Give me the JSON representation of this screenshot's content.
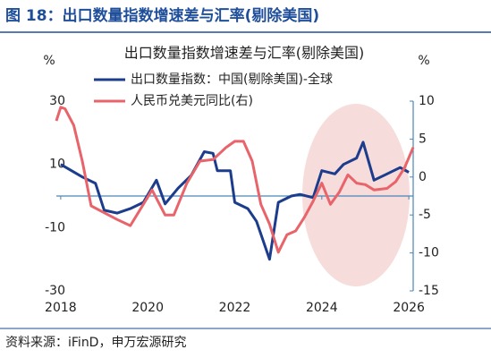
{
  "header": "图 18：出口数量指数增速差与汇率(剔除美国)",
  "source": "资料来源：iFinD，申万宏源研究",
  "chart_data": {
    "type": "line",
    "title": "出口数量指数增速差与汇率(剔除美国)",
    "y_label": "%",
    "y2_label": "%",
    "xlim": [
      2017.9,
      2026.1
    ],
    "xticks": [
      2018,
      2020,
      2022,
      2024,
      2026
    ],
    "ylim": [
      -30,
      30
    ],
    "yticks": [
      -30,
      -10,
      10,
      30
    ],
    "y2lim": [
      -15,
      10
    ],
    "y2ticks": [
      -15,
      -10,
      -5,
      0,
      5,
      10
    ],
    "series": [
      {
        "name": "出口数量指数：中国(剔除美国)-全球",
        "color": "#1c3c8c",
        "x": [
          2018.0,
          2018.5,
          2018.8,
          2019.0,
          2019.3,
          2019.6,
          2019.9,
          2020.2,
          2020.4,
          2020.7,
          2021.0,
          2021.3,
          2021.5,
          2021.6,
          2021.9,
          2022.0,
          2022.3,
          2022.5,
          2022.8,
          2023.0,
          2023.3,
          2023.5,
          2023.8,
          2024.0,
          2024.3,
          2024.5,
          2024.8,
          2024.95,
          2025.2,
          2025.5,
          2025.8,
          2026.0
        ],
        "values": [
          10,
          6,
          4,
          -4.5,
          -5.4,
          -4,
          -2,
          5,
          -2.5,
          2.5,
          6.5,
          14,
          13.5,
          8,
          8,
          -2,
          -4,
          -8,
          -20,
          -2,
          0,
          0.5,
          -0.5,
          8,
          7,
          10,
          12,
          17,
          5,
          7,
          9,
          7.5
        ]
      },
      {
        "name": "人民币兑美元同比(右)",
        "color": "#e8646a",
        "axis": "y2",
        "x": [
          2017.9,
          2018.0,
          2018.1,
          2018.3,
          2018.5,
          2018.7,
          2019.0,
          2019.3,
          2019.6,
          2019.9,
          2020.1,
          2020.4,
          2020.6,
          2020.9,
          2021.2,
          2021.5,
          2021.8,
          2022.0,
          2022.2,
          2022.4,
          2022.6,
          2022.8,
          2023.0,
          2023.2,
          2023.4,
          2023.6,
          2023.8,
          2024.0,
          2024.2,
          2024.4,
          2024.6,
          2024.8,
          2025.0,
          2025.2,
          2025.5,
          2025.7,
          2025.9,
          2026.1
        ],
        "values": [
          7.4,
          9.2,
          9,
          6.8,
          2,
          -3.8,
          -4.7,
          -5.6,
          -6.4,
          -3.6,
          -1.7,
          -5,
          -5,
          -0.8,
          2.1,
          2.3,
          3.9,
          4.7,
          4.7,
          2.1,
          -3.6,
          -6.2,
          -9.9,
          -7.6,
          -7.1,
          -5.3,
          -3.2,
          -0.8,
          -3.6,
          -2,
          0.3,
          -0.8,
          -1,
          -1.7,
          -1.5,
          -0.6,
          1.2,
          3.9
        ]
      }
    ]
  }
}
